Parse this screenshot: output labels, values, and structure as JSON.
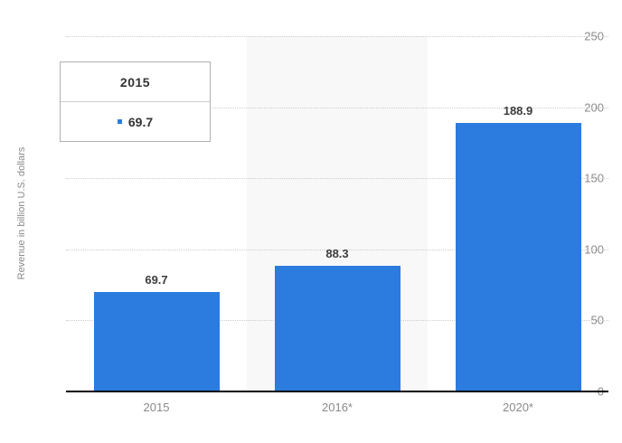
{
  "chart_data": {
    "type": "bar",
    "categories": [
      "2015",
      "2016*",
      "2020*"
    ],
    "values": [
      69.7,
      88.3,
      188.9
    ],
    "value_labels": [
      "69.7",
      "88.3",
      "188.9"
    ],
    "title": "",
    "xlabel": "",
    "ylabel": "Revenue in billion U.S. dollars",
    "ylim": [
      0,
      250
    ],
    "yticks": [
      250,
      200,
      150,
      100,
      50,
      0
    ],
    "grid": "horizontal-dotted",
    "legend_position": "none",
    "highlighted_category": "2016*",
    "bar_color": "#2c7bde",
    "highlight_color": "#f8f8f8",
    "grid_color": "#cccccc",
    "axis_line_color": "#000000",
    "tick_text_color": "#8a8a8a",
    "value_label_color": "#3c3c3c"
  },
  "tooltip": {
    "title": "2015",
    "value": "69.7",
    "marker_color": "#2c7bde",
    "marker_shape": "square"
  }
}
